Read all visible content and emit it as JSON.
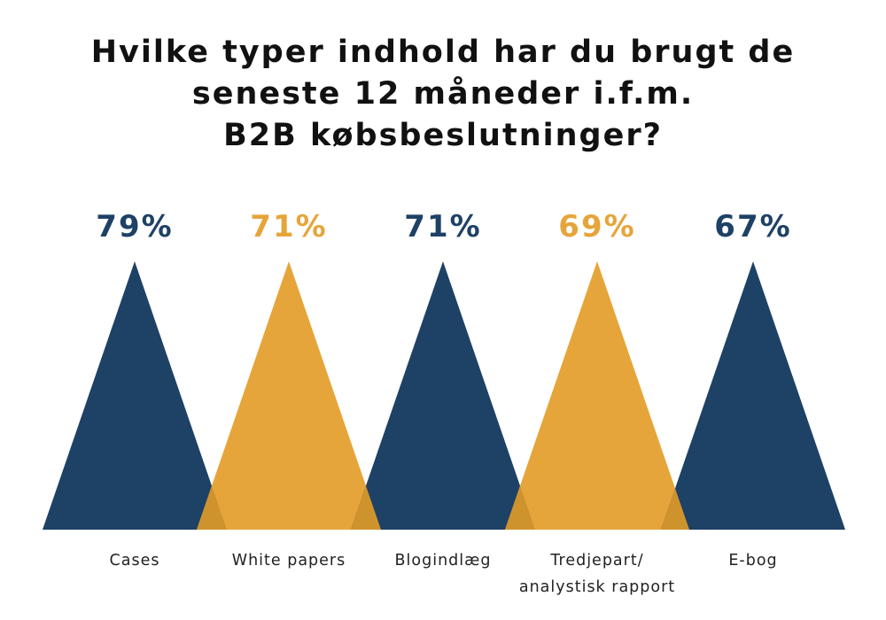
{
  "chart_data": {
    "type": "bar",
    "title_lines": [
      "Hvilke typer indhold har du brugt de",
      "seneste 12 måneder i.f.m.",
      "B2B købsbeslutninger?"
    ],
    "categories": [
      [
        "Cases"
      ],
      [
        "White papers"
      ],
      [
        "Blogindlæg"
      ],
      [
        "Tredjepart/",
        "analystisk rapport"
      ],
      [
        "E-bog"
      ]
    ],
    "values": [
      79,
      71,
      71,
      69,
      67
    ],
    "value_labels": [
      "79%",
      "71%",
      "71%",
      "69%",
      "67%"
    ],
    "ylim": [
      0,
      79
    ],
    "colors": [
      "#1e4166",
      "#e6a53a",
      "#1e4166",
      "#e6a53a",
      "#1e4166"
    ],
    "overlap_color": "#cf932e"
  }
}
